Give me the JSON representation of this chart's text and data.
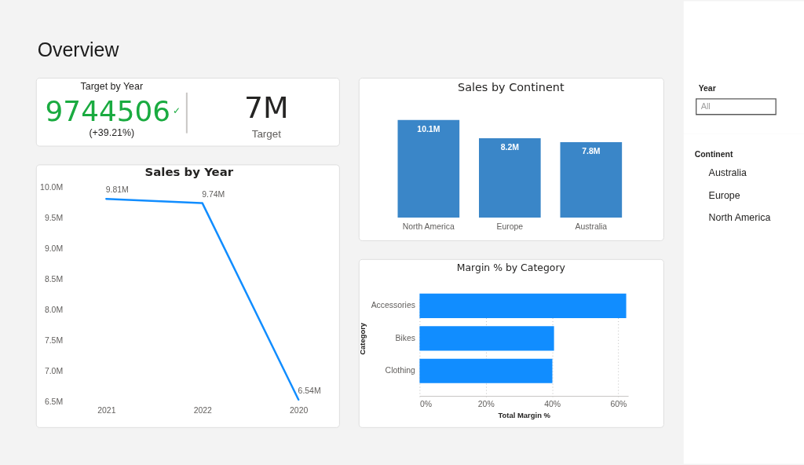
{
  "chart_data": [
    {
      "type": "other",
      "title": "Overview"
    },
    {
      "type": "other",
      "title": "Target by Year",
      "annotations": [
        "9744506",
        "✓",
        "(+39.21%)",
        "7M",
        "Target"
      ]
    },
    {
      "type": "bar",
      "title": "Sales by Continent",
      "categories": [
        "North America",
        "Europe",
        "Australia"
      ],
      "values": [
        10.1,
        8.2,
        7.8
      ],
      "value_labels": [
        "10.1M",
        "8.2M",
        "7.8M"
      ],
      "color": "#3a86c8",
      "tick_labels": "x"
    },
    {
      "type": "line",
      "title": "Sales by Year",
      "categories": [
        "2021",
        "2022",
        "2020"
      ],
      "values": [
        9.81,
        9.74,
        6.54
      ],
      "value_labels": [
        "9.81M",
        "9.74M",
        "6.54M"
      ],
      "color": "#118dff",
      "ylim": [
        6.5,
        10.0
      ],
      "yticks": [
        {
          "value": 6.5,
          "label": "6.5M"
        },
        {
          "value": 7.0,
          "label": "7.0M"
        },
        {
          "value": 7.5,
          "label": "7.5M"
        },
        {
          "value": 8.0,
          "label": "8.0M"
        },
        {
          "value": 8.5,
          "label": "8.5M"
        },
        {
          "value": 9.0,
          "label": "9.0M"
        },
        {
          "value": 9.5,
          "label": "9.5M"
        },
        {
          "value": 10.0,
          "label": "10.0M"
        }
      ]
    },
    {
      "type": "bar",
      "orientation": "horizontal",
      "title": "Margin % by Category",
      "categories": [
        "Accessories",
        "Bikes",
        "Clothing"
      ],
      "values": [
        62.4,
        40.6,
        40.1
      ],
      "color": "#118dff",
      "xlabel": "Total Margin %",
      "ylabel": "Category",
      "xlim": [
        0,
        63
      ],
      "xticks": [
        {
          "value": 0,
          "label": "0%"
        },
        {
          "value": 20,
          "label": "20%"
        },
        {
          "value": 40,
          "label": "40%"
        },
        {
          "value": 60,
          "label": "60%"
        }
      ],
      "grid": "x"
    },
    {
      "type": "other",
      "title": "Year",
      "annotations": [
        "All"
      ]
    },
    {
      "type": "other",
      "title": "Continent",
      "categories": [
        "Australia",
        "Europe",
        "North America"
      ]
    }
  ]
}
